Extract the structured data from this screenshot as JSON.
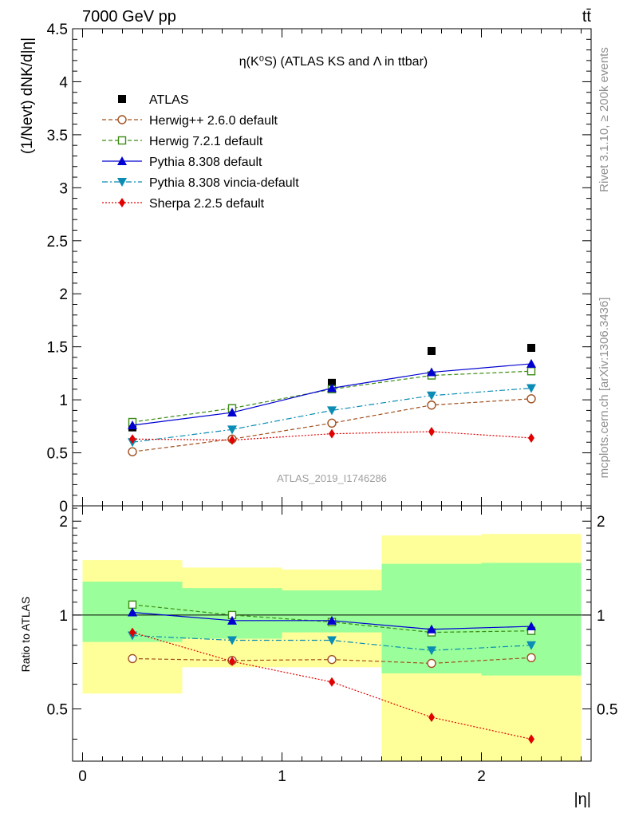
{
  "header": {
    "energy_label": "7000 GeV pp",
    "process_label": "tt̄",
    "rivet_label": "Rivet 3.1.10, ≥ 200k events",
    "mcplots_label": "mcplots.cern.ch [arXiv:1306.3436]",
    "analysis_label": "ATLAS_2019_I1746286"
  },
  "chart_data": [
    {
      "panel": "main",
      "type": "scatter",
      "title": "η(K⁰S) (ATLAS KS and Λ in ttbar)",
      "xlabel": "",
      "ylabel": "(1/Nevt) dNK/d|η|",
      "xlim": [
        -0.05,
        2.55
      ],
      "ylim": [
        0,
        4.5
      ],
      "yticks": [
        0,
        0.5,
        1,
        1.5,
        2,
        2.5,
        3,
        3.5,
        4,
        4.5
      ],
      "ytick_labels": [
        "0",
        "0.5",
        "1",
        "1.5",
        "2",
        "2.5",
        "3",
        "3.5",
        "4",
        "4.5"
      ],
      "x": [
        0.25,
        0.75,
        1.25,
        1.75,
        2.25
      ],
      "series": [
        {
          "name": "ATLAS",
          "color": "#000000",
          "marker": "square-filled",
          "line": "none",
          "values": [
            0.74,
            0.92,
            1.16,
            1.46,
            1.49
          ]
        },
        {
          "name": "Herwig++ 2.6.0 default",
          "color": "#a0501e",
          "marker": "circle-open",
          "line": "dashed",
          "values": [
            0.51,
            0.63,
            0.78,
            0.95,
            1.01
          ]
        },
        {
          "name": "Herwig 7.2.1 default",
          "color": "#3c8c14",
          "marker": "square-open",
          "line": "dashed",
          "values": [
            0.79,
            0.92,
            1.1,
            1.23,
            1.27
          ]
        },
        {
          "name": "Pythia 8.308 default",
          "color": "#0000d2",
          "marker": "triangle-up",
          "line": "solid",
          "values": [
            0.76,
            0.88,
            1.11,
            1.26,
            1.34
          ]
        },
        {
          "name": "Pythia 8.308 vincia-default",
          "color": "#0a8cb4",
          "marker": "triangle-down",
          "line": "dashdot",
          "values": [
            0.6,
            0.72,
            0.9,
            1.04,
            1.11
          ]
        },
        {
          "name": "Sherpa 2.2.5 default",
          "color": "#e10000",
          "marker": "diamond",
          "line": "dotted",
          "values": [
            0.63,
            0.62,
            0.68,
            0.7,
            0.64
          ]
        }
      ]
    },
    {
      "panel": "ratio",
      "type": "scatter",
      "ylabel": "Ratio to ATLAS",
      "xlabel": "|η|",
      "xlim": [
        -0.05,
        2.55
      ],
      "ylim": [
        0.34,
        2.24
      ],
      "yscale": "log",
      "yticks": [
        0.5,
        1,
        2
      ],
      "ytick_labels": [
        "0.5",
        "1",
        "2"
      ],
      "xticks": [
        0,
        1,
        2
      ],
      "xtick_labels": [
        "0",
        "1",
        "2"
      ],
      "x": [
        0.25,
        0.75,
        1.25,
        1.75,
        2.25
      ],
      "bands": {
        "bins": [
          [
            0,
            0.5
          ],
          [
            0.5,
            1.0
          ],
          [
            1.0,
            1.5
          ],
          [
            1.5,
            2.0
          ],
          [
            2.0,
            2.5
          ]
        ],
        "outer": [
          [
            0.56,
            1.5
          ],
          [
            0.68,
            1.42
          ],
          [
            0.68,
            1.4
          ],
          [
            0.34,
            1.8
          ],
          [
            0.34,
            1.82
          ]
        ],
        "inner": [
          [
            0.82,
            1.28
          ],
          [
            0.84,
            1.22
          ],
          [
            0.88,
            1.2
          ],
          [
            0.65,
            1.46
          ],
          [
            0.64,
            1.47
          ]
        ],
        "outer_color": "#ffff9a",
        "inner_color": "#9aff9a"
      },
      "series": [
        {
          "name": "Herwig++ 2.6.0 default",
          "color": "#a0501e",
          "marker": "circle-open",
          "line": "dashed",
          "values": [
            0.725,
            0.715,
            0.72,
            0.7,
            0.73
          ]
        },
        {
          "name": "Herwig 7.2.1 default",
          "color": "#3c8c14",
          "marker": "square-open",
          "line": "dashed",
          "values": [
            1.08,
            1.0,
            0.95,
            0.88,
            0.89
          ]
        },
        {
          "name": "Pythia 8.308 default",
          "color": "#0000d2",
          "marker": "triangle-up",
          "line": "solid",
          "values": [
            1.02,
            0.96,
            0.96,
            0.9,
            0.92
          ]
        },
        {
          "name": "Pythia 8.308 vincia-default",
          "color": "#0a8cb4",
          "marker": "triangle-down",
          "line": "dashdot",
          "values": [
            0.86,
            0.83,
            0.83,
            0.77,
            0.8
          ]
        },
        {
          "name": "Sherpa 2.2.5 default",
          "color": "#e10000",
          "marker": "diamond",
          "line": "dotted",
          "values": [
            0.88,
            0.71,
            0.61,
            0.47,
            0.4
          ]
        }
      ]
    }
  ]
}
